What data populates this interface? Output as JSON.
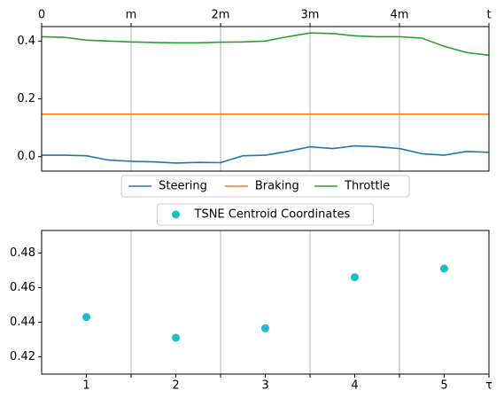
{
  "chart_data": [
    {
      "type": "line",
      "x": [
        0,
        0.25,
        0.5,
        0.75,
        1,
        1.25,
        1.5,
        1.75,
        2,
        2.25,
        2.5,
        2.75,
        3,
        3.25,
        3.5,
        3.75,
        4,
        4.25,
        4.5,
        4.75,
        5
      ],
      "series": [
        {
          "name": "Steering",
          "color": "#1f77b4",
          "values": [
            0.005,
            0.005,
            0.003,
            -0.012,
            -0.016,
            -0.018,
            -0.022,
            -0.02,
            -0.021,
            0.003,
            0.005,
            0.018,
            0.034,
            0.028,
            0.037,
            0.034,
            0.028,
            0.01,
            0.005,
            0.018,
            0.015
          ]
        },
        {
          "name": "Braking",
          "color": "#ff7f0e",
          "values": [
            0.147,
            0.147,
            0.147,
            0.147,
            0.147,
            0.147,
            0.147,
            0.147,
            0.147,
            0.147,
            0.147,
            0.147,
            0.147,
            0.147,
            0.147,
            0.147,
            0.147,
            0.147,
            0.147,
            0.147,
            0.147
          ]
        },
        {
          "name": "Throttle",
          "color": "#2ca02c",
          "values": [
            0.415,
            0.413,
            0.403,
            0.4,
            0.397,
            0.395,
            0.394,
            0.394,
            0.396,
            0.397,
            0.4,
            0.415,
            0.428,
            0.426,
            0.418,
            0.415,
            0.415,
            0.41,
            0.382,
            0.36,
            0.351
          ]
        }
      ],
      "xlim": [
        0,
        5
      ],
      "xticks": [
        0,
        {
          "value": 1,
          "label": "m"
        },
        {
          "value": 2,
          "label": "2m"
        },
        {
          "value": 3,
          "label": "3m"
        },
        {
          "value": 4,
          "label": "4m"
        },
        {
          "value": 5,
          "label": "t"
        }
      ],
      "xaxis_position": "top",
      "ylim": [
        -0.05,
        0.45
      ],
      "yticks": [
        {
          "value": 0,
          "label": "0.0"
        },
        0.2,
        0.4
      ],
      "grid": "x",
      "legend_loc": "below"
    },
    {
      "type": "scatter",
      "x": [
        1,
        2,
        3,
        4,
        5
      ],
      "series": [
        {
          "name": "TSNE Centroid Coordinates",
          "color": "#17becf",
          "values": [
            0.443,
            0.431,
            0.4365,
            0.466,
            0.471
          ]
        }
      ],
      "xlim": [
        0.5,
        5.5
      ],
      "xticks": [
        1,
        2,
        3,
        4,
        5,
        {
          "value": 5.5,
          "label": "τ"
        }
      ],
      "xgrid": [
        1.5,
        2.5,
        3.5,
        4.5
      ],
      "xaxis_position": "bottom",
      "ylim": [
        0.41,
        0.493
      ],
      "yticks": [
        0.42,
        0.44,
        0.46,
        0.48
      ],
      "grid": "x",
      "legend_loc": "above"
    }
  ]
}
